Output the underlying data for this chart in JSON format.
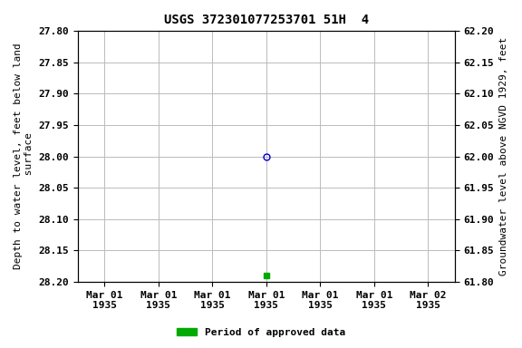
{
  "title": "USGS 372301077253701 51H  4",
  "ylabel_left": "Depth to water level, feet below land\n surface",
  "ylabel_right": "Groundwater level above NGVD 1929, feet",
  "ylim_left": [
    28.2,
    27.8
  ],
  "ylim_right": [
    61.8,
    62.2
  ],
  "yticks_left": [
    27.8,
    27.85,
    27.9,
    27.95,
    28.0,
    28.05,
    28.1,
    28.15,
    28.2
  ],
  "yticks_right": [
    61.8,
    61.85,
    61.9,
    61.95,
    62.0,
    62.05,
    62.1,
    62.15,
    62.2
  ],
  "xtick_labels": [
    "Mar 01\n1935",
    "Mar 01\n1935",
    "Mar 01\n1935",
    "Mar 01\n1935",
    "Mar 01\n1935",
    "Mar 01\n1935",
    "Mar 02\n1935"
  ],
  "data_open_x": 3,
  "data_open_y": 28.0,
  "data_open_color": "#0000cc",
  "data_filled_x": 3,
  "data_filled_y": 28.19,
  "data_filled_color": "#00aa00",
  "xlim": [
    0,
    6
  ],
  "background_color": "#ffffff",
  "grid_color": "#bbbbbb",
  "title_fontsize": 10,
  "tick_fontsize": 8,
  "label_fontsize": 8,
  "legend_label": "Period of approved data",
  "legend_color": "#00aa00"
}
